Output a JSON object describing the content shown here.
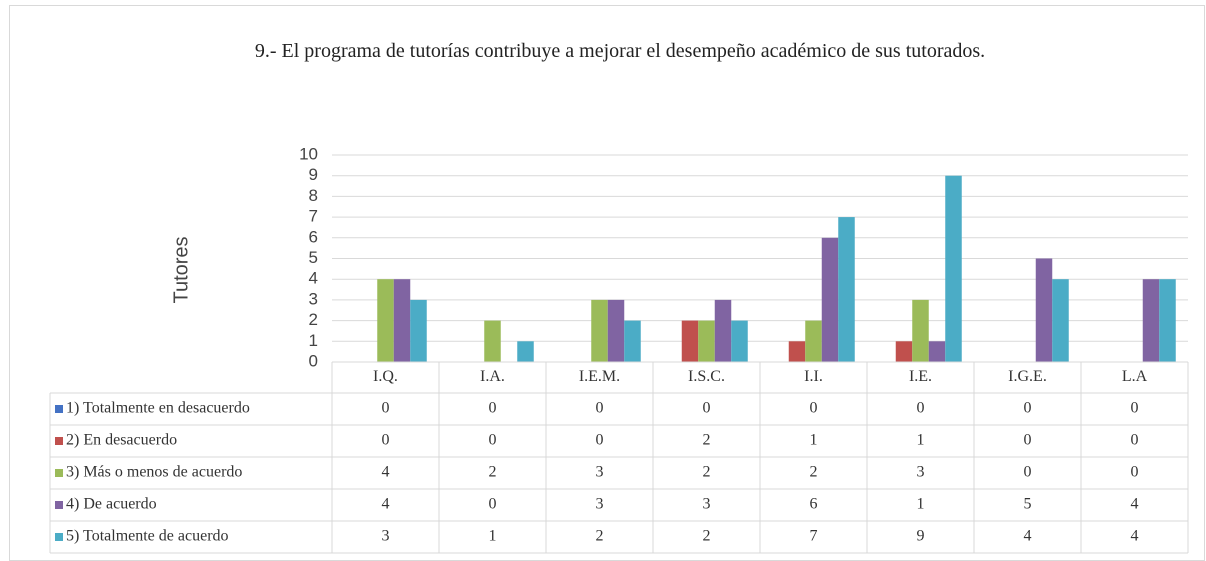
{
  "chart_data": {
    "type": "bar",
    "title": "9.- El programa de tutorías contribuye a mejorar el desempeño académico de sus tutorados.",
    "y_label": "Tutores",
    "categories": [
      "I.Q.",
      "I.A.",
      "I.E.M.",
      "I.S.C.",
      "I.I.",
      "I.E.",
      "I.G.E.",
      "L.A"
    ],
    "series": [
      {
        "name": "1) Totalmente en desacuerdo",
        "color": "#4472c4",
        "values": [
          0,
          0,
          0,
          0,
          0,
          0,
          0,
          0
        ]
      },
      {
        "name": "2) En desacuerdo",
        "color": "#c0504d",
        "values": [
          0,
          0,
          0,
          2,
          1,
          1,
          0,
          0
        ]
      },
      {
        "name": "3) Más o menos de acuerdo",
        "color": "#9bbb59",
        "values": [
          4,
          2,
          3,
          2,
          2,
          3,
          0,
          0
        ]
      },
      {
        "name": "4) De acuerdo",
        "color": "#8064a2",
        "values": [
          4,
          0,
          3,
          3,
          6,
          1,
          5,
          4
        ]
      },
      {
        "name": "5) Totalmente de acuerdo",
        "color": "#4bacc6",
        "values": [
          3,
          1,
          2,
          2,
          7,
          9,
          4,
          4
        ]
      }
    ],
    "ylim": [
      0,
      10
    ],
    "yticks": [
      0,
      1,
      2,
      3,
      4,
      5,
      6,
      7,
      8,
      9,
      10
    ],
    "grid": true,
    "data_table": true
  }
}
